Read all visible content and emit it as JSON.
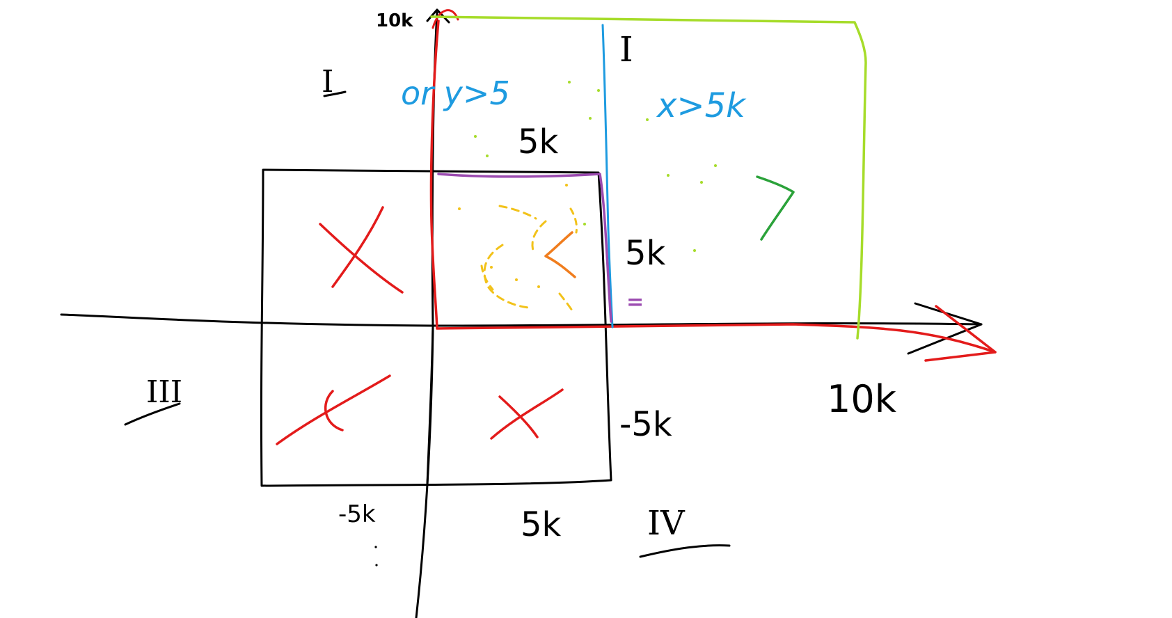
{
  "colors": {
    "axis": "#000000",
    "region_outline": "#e31b1b",
    "upper_bound": "#a6dc2a",
    "threshold_line": "#1e9be0",
    "inner_square": "#9b4bb0",
    "x_mark": "#e31b1b",
    "greater_sign": "#2ba23a",
    "less_sign": "#f07d1e",
    "scribble": "#f2c21a",
    "equals_sign": "#9b4bb0"
  },
  "labels": {
    "y_top": "10k",
    "q1": "I",
    "q2": "I",
    "q3": "III",
    "q4": "IV",
    "cond_y": "or  y>5",
    "cond_x": "x>5k",
    "inner_top": "5k",
    "inner_right": "5k",
    "x_end": "10k",
    "neg_right": "-5k",
    "neg_bottom": "-5k",
    "pos_bottom": "5k",
    "greater": ">",
    "less": "<",
    "equals": "="
  }
}
